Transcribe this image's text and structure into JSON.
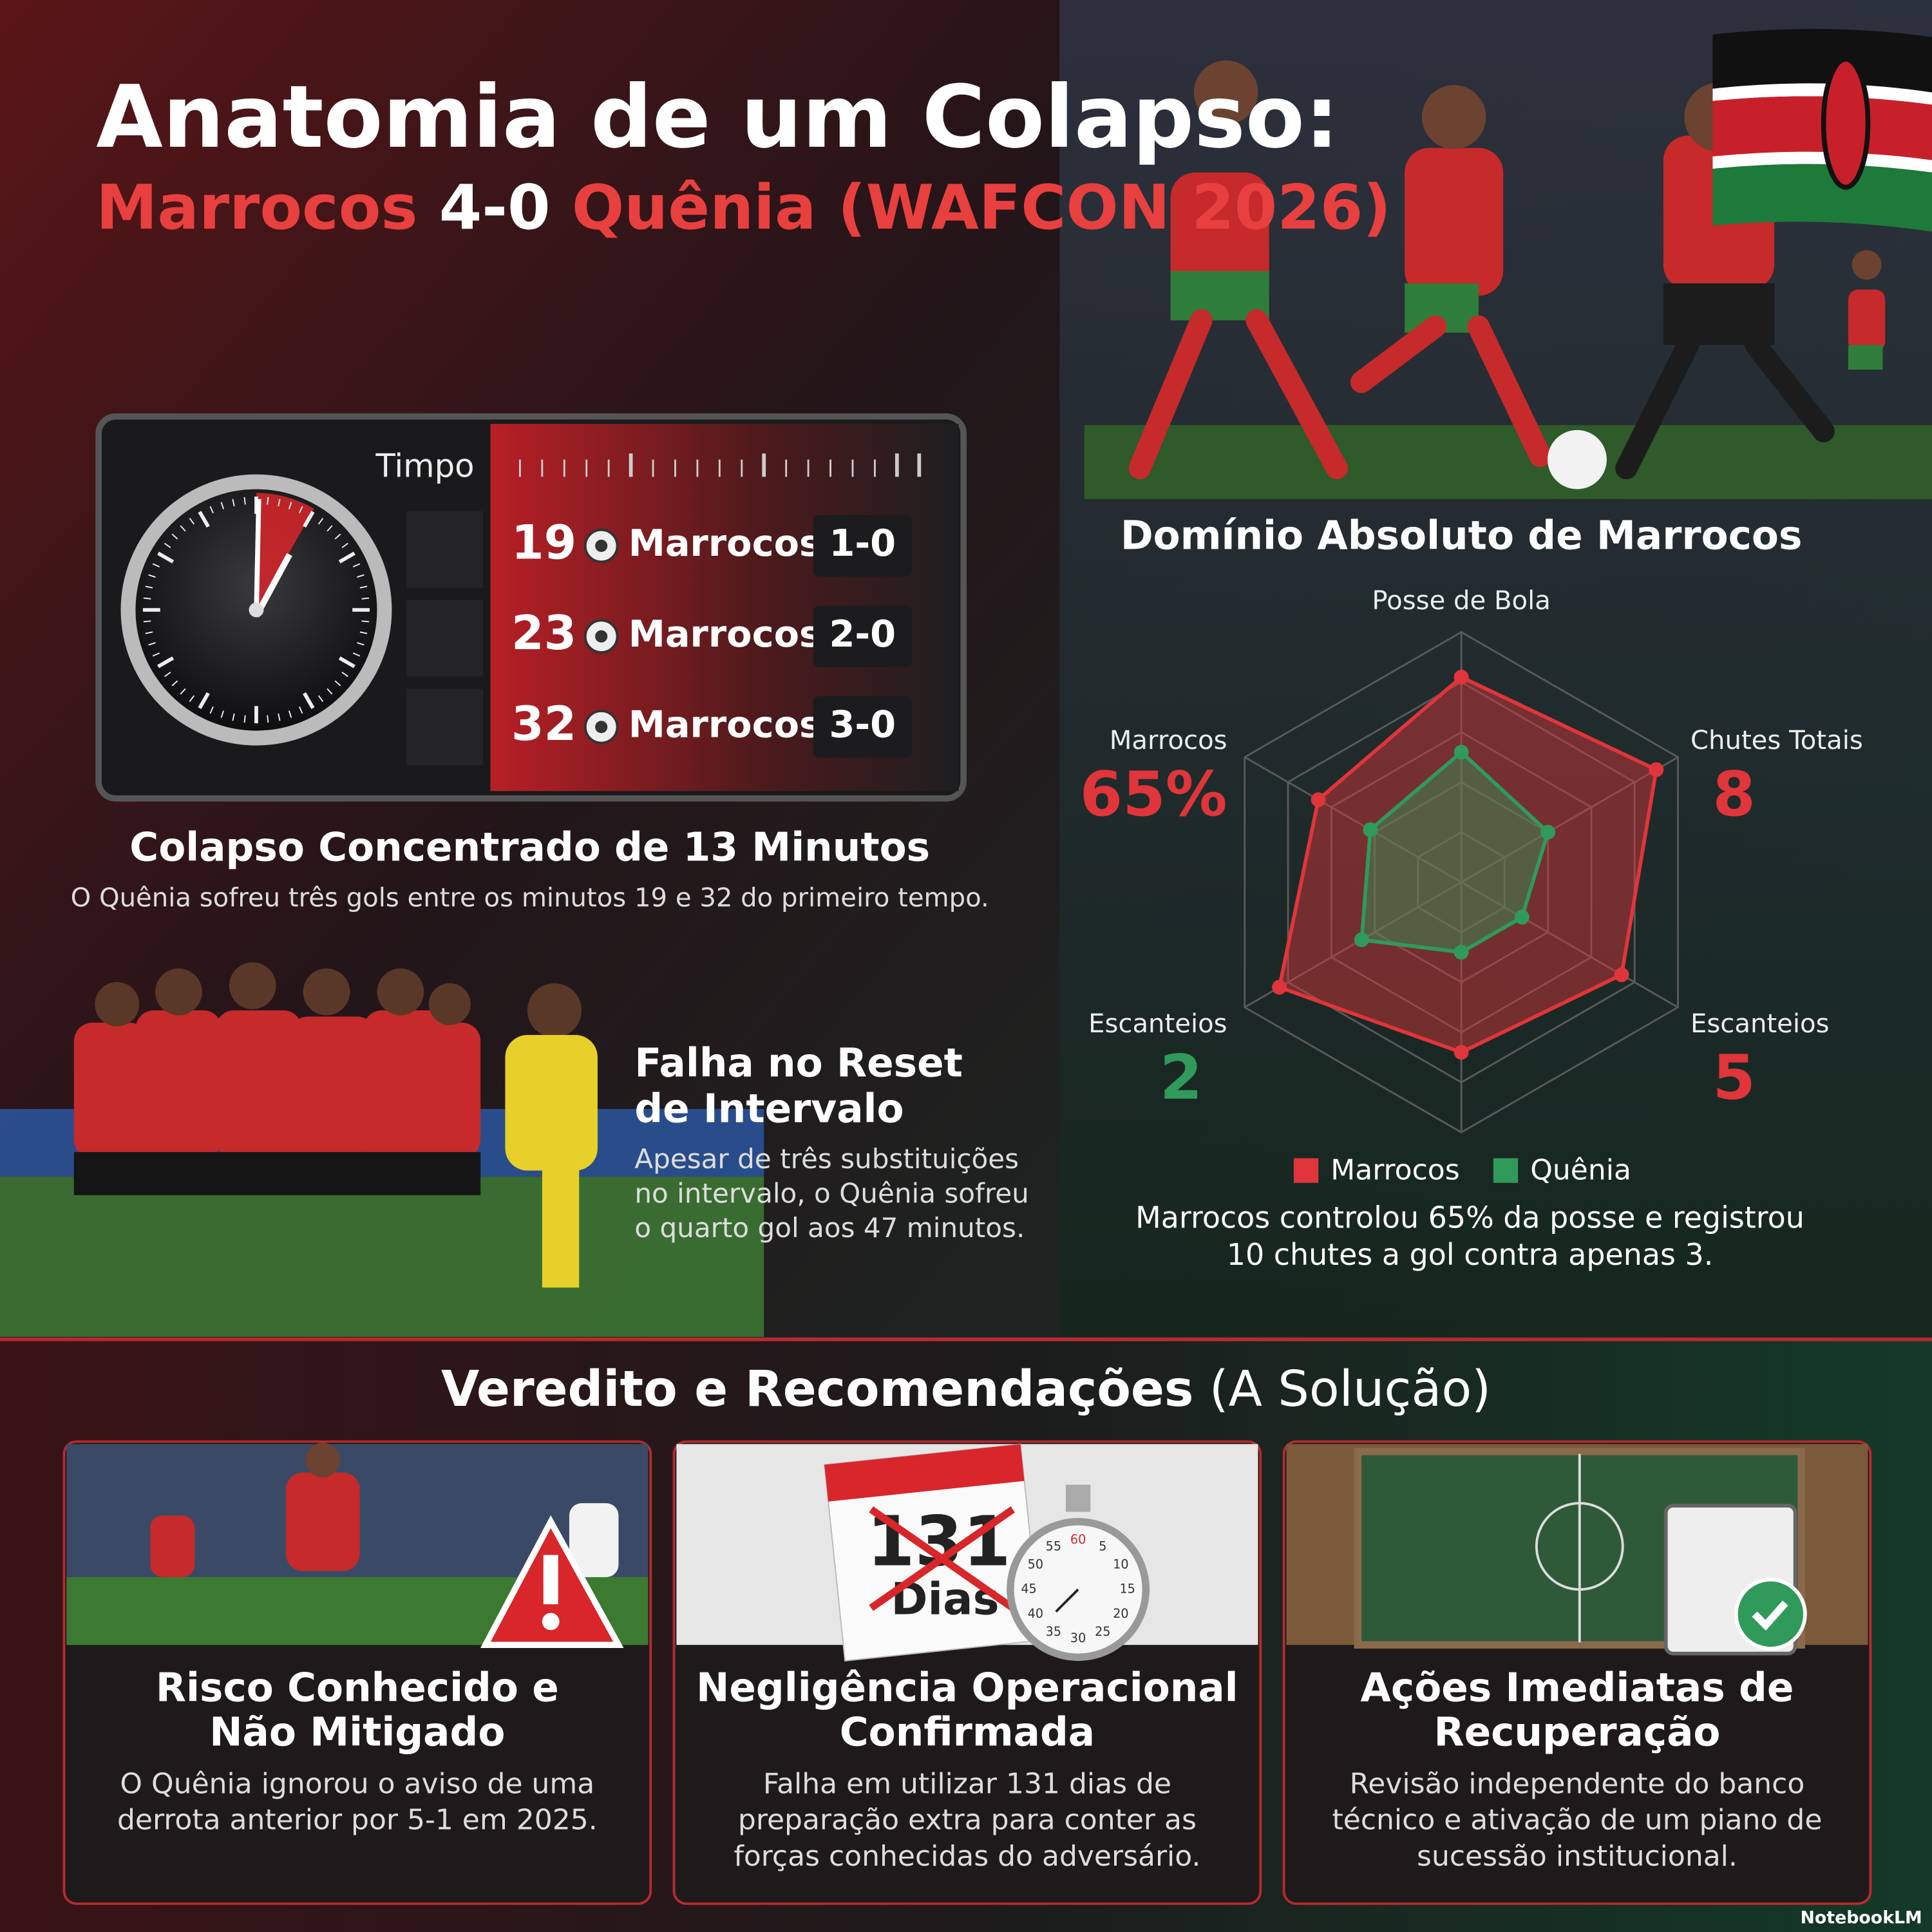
{
  "header": {
    "title": "Anatomia de um Colapso:",
    "subtitle": {
      "home": "Marrocos",
      "score": "4-0",
      "away": "Quênia (WAFCON 2026)"
    }
  },
  "scoreboard": {
    "label": "Timpo",
    "goals": [
      {
        "minute": 19,
        "team": "Marrocos",
        "score": "1-0"
      },
      {
        "minute": 23,
        "team": "Marrocos",
        "score": "2-0"
      },
      {
        "minute": 32,
        "team": "Marrocos",
        "score": "3-0"
      }
    ],
    "title": "Colapso Concentrado de 13 Minutos",
    "text": "O Quênia sofreu três gols entre os minutos 19 e 32 do primeiro tempo."
  },
  "halftime": {
    "title_lines": [
      "Falha no Reset",
      "de Intervalo"
    ],
    "body_lines": [
      "Apesar de três substituições",
      "no intervalo, o Quênia sofreu",
      "o quarto gol aos 47 minutos."
    ]
  },
  "chart_data": {
    "type": "radar",
    "title": "Domínio Absoluto de Marrocos",
    "categories": [
      "Posse de Bola",
      null,
      null,
      null,
      null,
      null
    ],
    "rlim": [
      0,
      5
    ],
    "rticks": [
      1,
      2,
      3,
      4,
      5
    ],
    "series": [
      {
        "name": "Marrocos",
        "color": "#e0353a",
        "values": [
          4.1,
          4.5,
          3.7,
          3.4,
          4.2,
          3.3
        ]
      },
      {
        "name": "Quênia",
        "color": "#2f9a5a",
        "values": [
          2.6,
          2.0,
          1.4,
          1.4,
          2.3,
          2.1
        ]
      }
    ],
    "annotations": [
      {
        "label": "Marrocos",
        "value": 65,
        "value_label": "65%",
        "color": "#e0353a"
      },
      {
        "label": "Chutes Totais",
        "value": 8,
        "color": "#e0353a"
      },
      {
        "label": "Escanteios",
        "value": 2,
        "color": "#2f9a5a"
      },
      {
        "label": "Escanteios",
        "value": 5,
        "color": "#e0353a"
      }
    ],
    "caption_lines": [
      "Marrocos controlou 65% da posse e registrou",
      "10 chutes a gol contra apenas 3."
    ]
  },
  "verdict": {
    "title": "Veredito e Recomendações",
    "title_suffix": "(A Solução)",
    "cards": [
      {
        "title_lines": [
          "Risco Conhecido e",
          "Não Mitigado"
        ],
        "body_lines": [
          "O Quênia ignorou o aviso de uma",
          "derrota anterior por 5-1 em 2025."
        ]
      },
      {
        "title_lines": [
          "Negligência Operacional",
          "Confirmada"
        ],
        "body_lines": [
          "Falha em utilizar 131 dias de",
          "preparação extra para conter as",
          "forças conhecidas do adversário."
        ],
        "calendar_number": "131",
        "calendar_word": "Dias",
        "stopwatch_labels": [
          60,
          5,
          10,
          15,
          20,
          25,
          30,
          35,
          40,
          45,
          50,
          55
        ]
      },
      {
        "title_lines": [
          "Ações Imediatas de",
          "Recuperação"
        ],
        "body_lines": [
          "Revisão independente do banco",
          "técnico e ativação de um piano de",
          "sucessão institucional."
        ]
      }
    ]
  },
  "footer": "NotebookLM"
}
